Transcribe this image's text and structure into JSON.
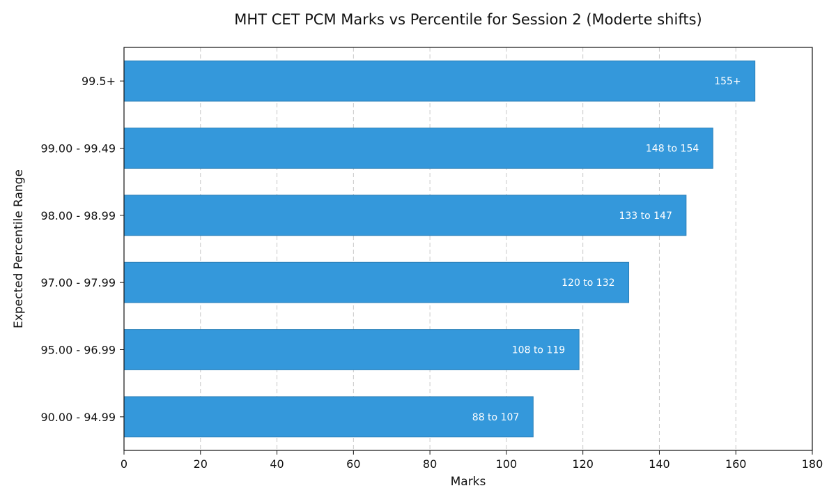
{
  "chart_data": {
    "type": "bar",
    "orientation": "horizontal",
    "title": "MHT CET PCM Marks vs Percentile for Session 2 (Moderte shifts)",
    "xlabel": "Marks",
    "ylabel": "Expected Percentile Range",
    "xlim": [
      0,
      180
    ],
    "xticks": [
      0,
      20,
      40,
      60,
      80,
      100,
      120,
      140,
      160,
      180
    ],
    "grid": "x-dashed",
    "categories": [
      "99.5+",
      "99.00 - 99.49",
      "98.00 - 98.99",
      "97.00 - 97.99",
      "95.00 - 96.99",
      "90.00 - 94.99"
    ],
    "values": [
      165,
      154,
      147,
      132,
      119,
      107
    ],
    "labels": [
      "155+",
      "148 to 154",
      "133 to 147",
      "120 to 132",
      "108 to 119",
      "88 to 107"
    ],
    "bar_color": "#3498db",
    "bar_edge_color": "#2a7fb8"
  }
}
